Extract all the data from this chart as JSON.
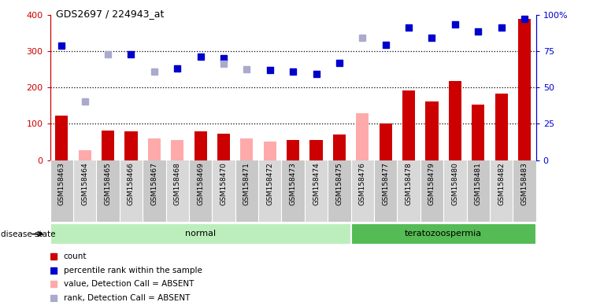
{
  "title": "GDS2697 / 224943_at",
  "samples": [
    "GSM158463",
    "GSM158464",
    "GSM158465",
    "GSM158466",
    "GSM158467",
    "GSM158468",
    "GSM158469",
    "GSM158470",
    "GSM158471",
    "GSM158472",
    "GSM158473",
    "GSM158474",
    "GSM158475",
    "GSM158476",
    "GSM158477",
    "GSM158478",
    "GSM158479",
    "GSM158480",
    "GSM158481",
    "GSM158482",
    "GSM158483"
  ],
  "count_present": [
    122,
    0,
    82,
    80,
    0,
    0,
    80,
    72,
    0,
    0,
    55,
    55,
    70,
    0,
    102,
    192,
    162,
    218,
    152,
    183,
    390
  ],
  "count_absent": [
    0,
    27,
    0,
    0,
    60,
    55,
    0,
    0,
    60,
    50,
    0,
    0,
    0,
    130,
    0,
    0,
    0,
    0,
    0,
    0,
    0
  ],
  "rank_present": [
    315,
    0,
    0,
    292,
    0,
    253,
    285,
    282,
    0,
    248,
    245,
    237,
    268,
    0,
    318,
    365,
    337,
    375,
    355,
    365,
    390
  ],
  "rank_absent": [
    0,
    162,
    293,
    0,
    244,
    0,
    0,
    265,
    250,
    0,
    0,
    0,
    0,
    337,
    0,
    0,
    0,
    0,
    0,
    0,
    0
  ],
  "disease_groups": [
    {
      "label": "normal",
      "start": 0,
      "end": 13,
      "color": "#bbeebb"
    },
    {
      "label": "teratozoospermia",
      "start": 13,
      "end": 21,
      "color": "#55bb55"
    }
  ],
  "ylim_left": [
    0,
    400
  ],
  "ylim_right": [
    0,
    100
  ],
  "yticks_left": [
    0,
    100,
    200,
    300,
    400
  ],
  "yticks_right": [
    0,
    25,
    50,
    75,
    100
  ],
  "ytick_labels_right": [
    "0",
    "25",
    "50",
    "75",
    "100%"
  ],
  "hlines": [
    100,
    200,
    300
  ],
  "bar_color_present": "#cc0000",
  "bar_color_absent": "#ffaaaa",
  "dot_color_present": "#0000cc",
  "dot_color_absent": "#aaaacc",
  "bar_width": 0.55,
  "left_color": "#cc0000",
  "right_color": "#0000cc",
  "gray_band": "#c8c8c8",
  "legend_items": [
    {
      "color": "#cc0000",
      "marker": "s",
      "label": "count"
    },
    {
      "color": "#0000cc",
      "marker": "s",
      "label": "percentile rank within the sample"
    },
    {
      "color": "#ffaaaa",
      "marker": "s",
      "label": "value, Detection Call = ABSENT"
    },
    {
      "color": "#aaaacc",
      "marker": "s",
      "label": "rank, Detection Call = ABSENT"
    }
  ]
}
